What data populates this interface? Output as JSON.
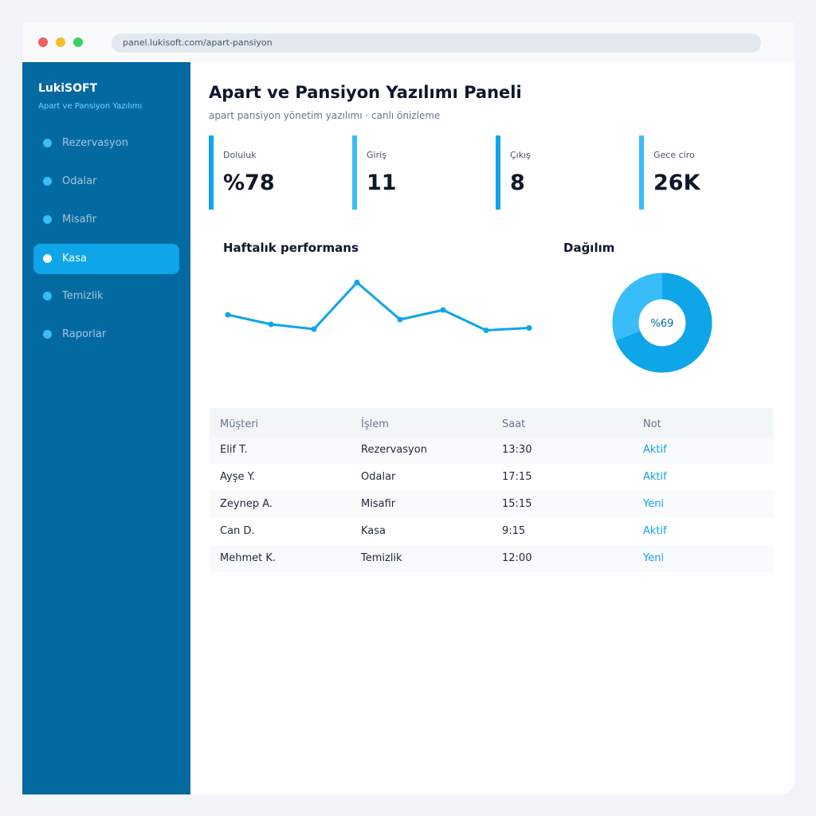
{
  "browser": {
    "url": "panel.lukisoft.com/apart-pansiyon"
  },
  "sidebar": {
    "brand": "LukiSOFT",
    "brand_sub": "Apart ve Pansiyon Yazılımı",
    "items": [
      {
        "label": "Rezervasyon",
        "active": false
      },
      {
        "label": "Odalar",
        "active": false
      },
      {
        "label": "Misafir",
        "active": false
      },
      {
        "label": "Kasa",
        "active": true
      },
      {
        "label": "Temizlik",
        "active": false
      },
      {
        "label": "Raporlar",
        "active": false
      }
    ]
  },
  "main": {
    "title": "Apart ve Pansiyon Yazılımı Paneli",
    "subtitle": "apart pansiyon yönetim yazılımı · canlı önizleme",
    "stats": [
      {
        "label": "Doluluk",
        "value": "%78"
      },
      {
        "label": "Giriş",
        "value": "11"
      },
      {
        "label": "Çıkış",
        "value": "8"
      },
      {
        "label": "Gece ciro",
        "value": "26K"
      }
    ],
    "performance_title": "Haftalık performans",
    "distribution_title": "Dağılım",
    "donut_label": "%69"
  },
  "chart_data": {
    "type": "line",
    "x": [
      1,
      2,
      3,
      4,
      5,
      6,
      7,
      8
    ],
    "values": [
      62,
      54,
      50,
      89,
      58,
      66,
      49,
      51
    ],
    "ylim": [
      0,
      100
    ],
    "grid": false,
    "color": "#0ea5e9"
  },
  "donut": {
    "percent": 69,
    "colors": [
      "#0ea5e9",
      "#38bdf8"
    ]
  },
  "table": {
    "headers": [
      "Müşteri",
      "İşlem",
      "Saat",
      "Not"
    ],
    "rows": [
      {
        "customer": "Elif T.",
        "action": "Rezervasyon",
        "time": "13:30",
        "note": "Aktif"
      },
      {
        "customer": "Ayşe Y.",
        "action": "Odalar",
        "time": "17:15",
        "note": "Aktif"
      },
      {
        "customer": "Zeynep A.",
        "action": "Misafir",
        "time": "15:15",
        "note": "Yeni"
      },
      {
        "customer": "Can D.",
        "action": "Kasa",
        "time": "9:15",
        "note": "Aktif"
      },
      {
        "customer": "Mehmet K.",
        "action": "Temizlik",
        "time": "12:00",
        "note": "Yeni"
      }
    ]
  },
  "colors": {
    "sidebar": "#0369a1",
    "accent": "#0ea5e9",
    "accent_light": "#38bdf8"
  }
}
